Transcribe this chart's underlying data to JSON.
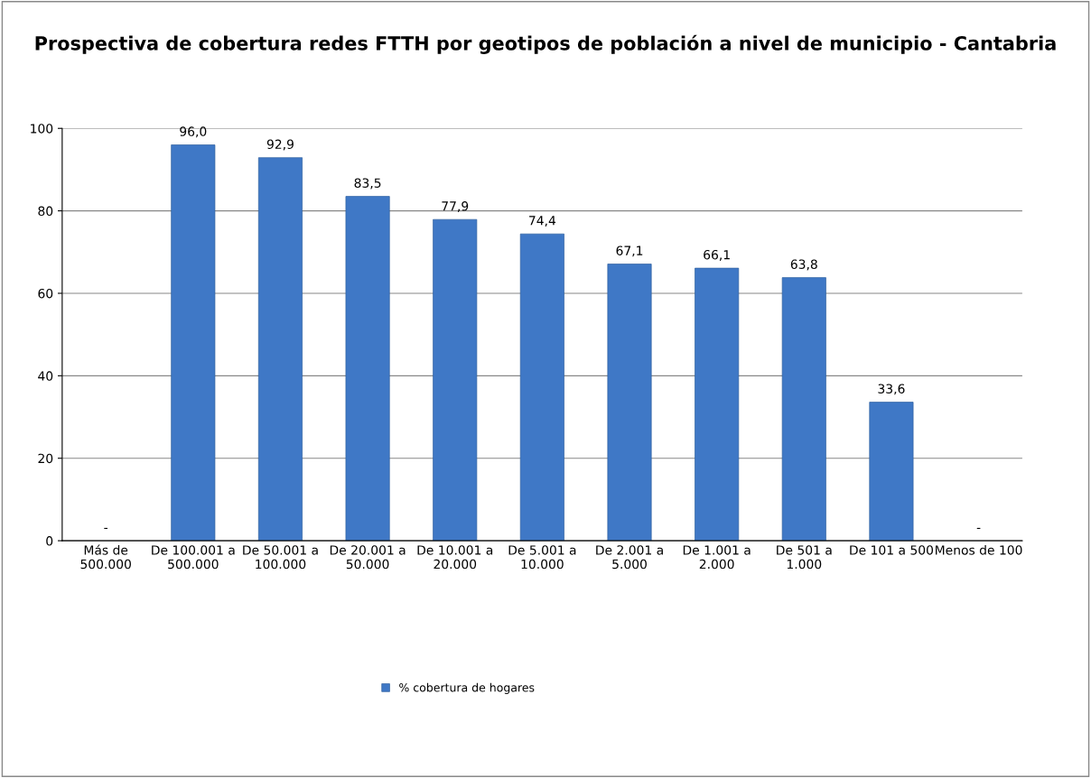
{
  "chart_data": {
    "type": "bar",
    "title": "Prospectiva de cobertura redes FTTH por geotipos de población a nivel de municipio - Cantabria",
    "categories": [
      "Más de 500.000",
      "De 100.001 a 500.000",
      "De 50.001 a 100.000",
      "De 20.001 a 50.000",
      "De 10.001 a 20.000",
      "De 5.001 a 10.000",
      "De 2.001 a 5.000",
      "De 1.001 a 2.000",
      "De 501 a 1.000",
      "De 101 a 500",
      "Menos de 100"
    ],
    "series": [
      {
        "name": "% cobertura de hogares",
        "color": "#3f78c6",
        "values": [
          null,
          96.0,
          92.9,
          83.5,
          77.9,
          74.4,
          67.1,
          66.1,
          63.8,
          33.6,
          null
        ],
        "value_labels": [
          "-",
          "96,0",
          "92,9",
          "83,5",
          "77,9",
          "74,4",
          "67,1",
          "66,1",
          "63,8",
          "33,6",
          "-"
        ]
      }
    ],
    "ylim": [
      0,
      100
    ],
    "yticks": [
      0,
      20,
      40,
      60,
      80,
      100
    ],
    "grid": "y",
    "legend": "bottom"
  }
}
